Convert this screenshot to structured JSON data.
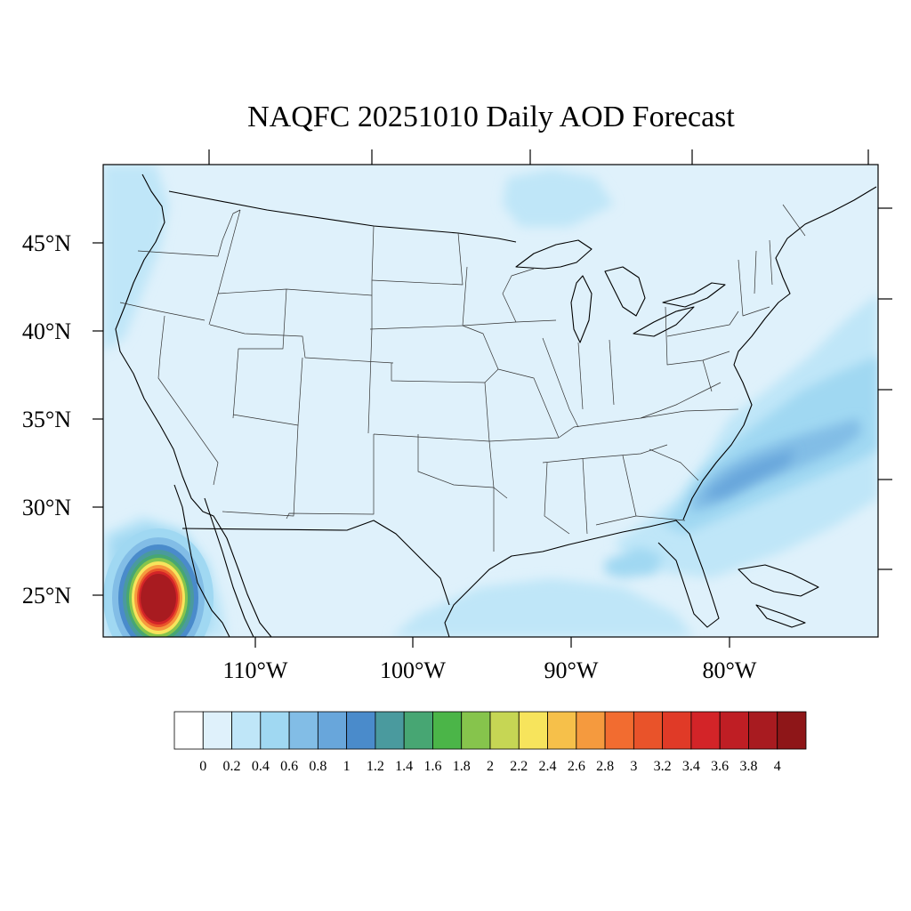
{
  "title": "NAQFC 20251010 Daily AOD Forecast",
  "lat_labels": [
    "45°N",
    "40°N",
    "35°N",
    "30°N",
    "25°N"
  ],
  "lon_labels": [
    "110°W",
    "100°W",
    "90°W",
    "80°W"
  ],
  "colorbar": {
    "labels": [
      "0",
      "0.2",
      "0.4",
      "0.6",
      "0.8",
      "1",
      "1.2",
      "1.4",
      "1.6",
      "1.8",
      "2",
      "2.2",
      "2.4",
      "2.6",
      "2.8",
      "3",
      "3.2",
      "3.4",
      "3.6",
      "3.8",
      "4"
    ],
    "colors": [
      "#ffffff",
      "#dff1fb",
      "#bfe6f8",
      "#a0d8f2",
      "#82bde6",
      "#68a6db",
      "#4a8bcb",
      "#4a9a9e",
      "#47a673",
      "#4bb548",
      "#86c44c",
      "#c6d654",
      "#f7e45c",
      "#f6c04a",
      "#f59a3e",
      "#f26c30",
      "#e9532a",
      "#e03a27",
      "#d32428",
      "#bf1e24",
      "#a81b20",
      "#8e1618"
    ]
  },
  "aod_field": {
    "background_level_color": "#dff1fb",
    "features": [
      {
        "label_hint": "baja-plume",
        "peak_level": 4.0
      },
      {
        "label_hint": "atlantic-band",
        "peak_level": 0.8
      },
      {
        "label_hint": "gulf-patch",
        "peak_level": 0.6
      }
    ]
  }
}
